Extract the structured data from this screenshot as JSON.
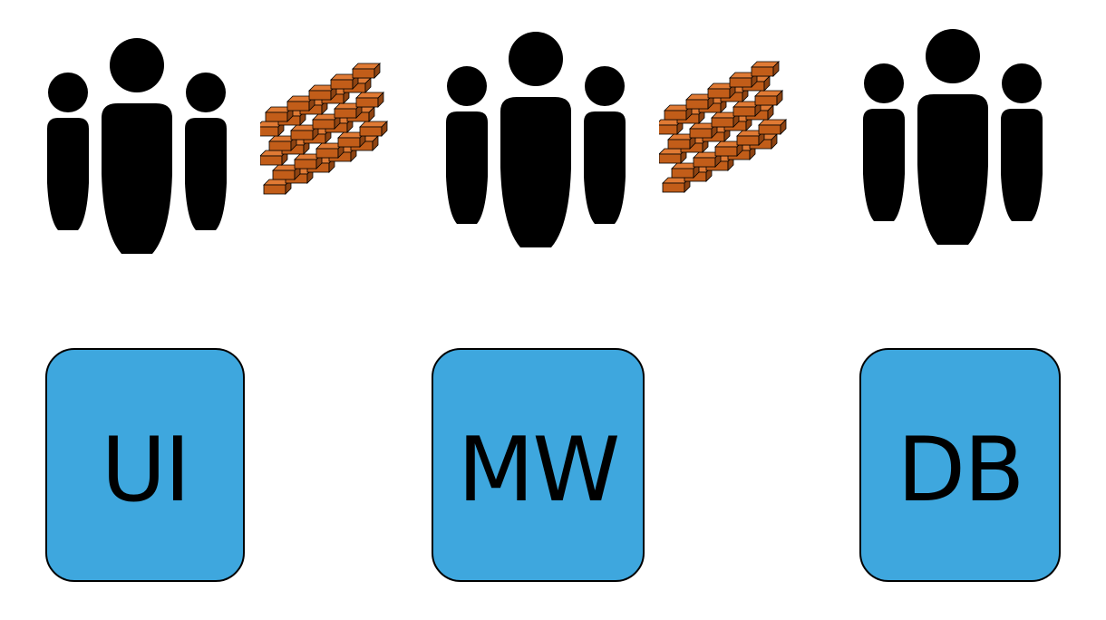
{
  "colors": {
    "box_fill": "#3ea7de",
    "box_text": "#000000",
    "people": "#000000",
    "brick": "#c25d19",
    "brick_outline": "#000000"
  },
  "groups": [
    {
      "team_icon": "people-group-icon",
      "box_label": "UI"
    },
    {
      "team_icon": "people-group-icon",
      "box_label": "MW"
    },
    {
      "team_icon": "people-group-icon",
      "box_label": "DB"
    }
  ],
  "barriers": [
    {
      "icon": "brick-wall-icon"
    },
    {
      "icon": "brick-wall-icon"
    }
  ]
}
